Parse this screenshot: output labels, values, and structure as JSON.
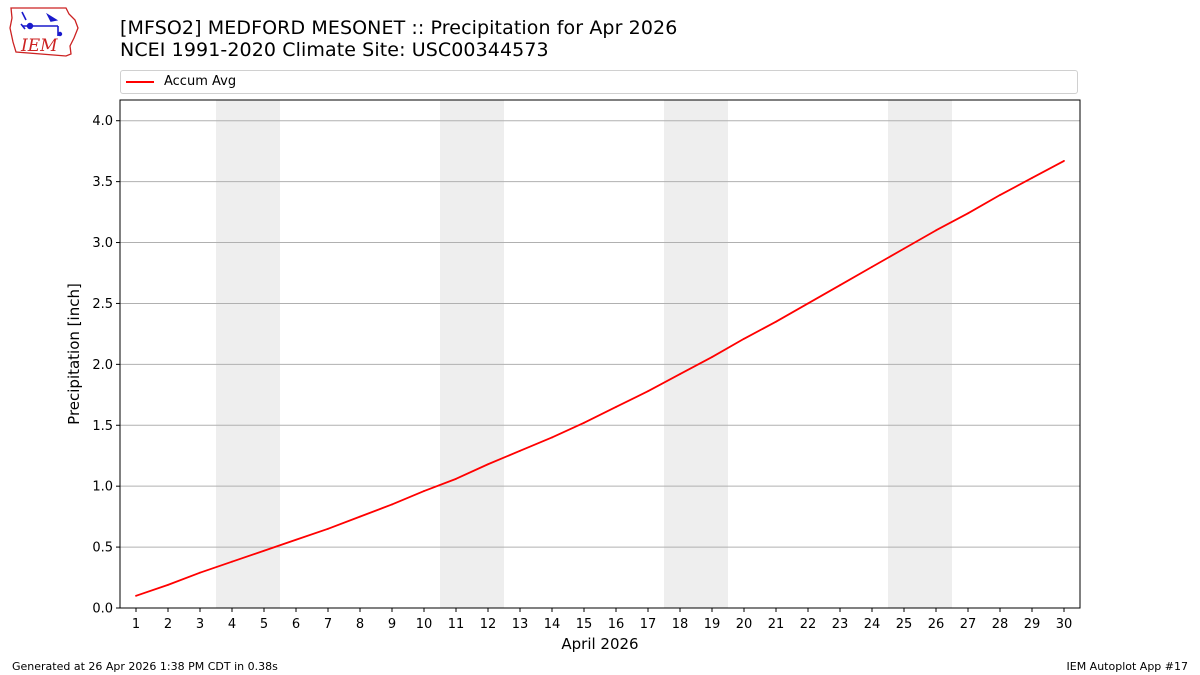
{
  "header": {
    "logo_text": "IEM",
    "title_line1": "[MFSO2] MEDFORD MESONET :: Precipitation for Apr 2026",
    "title_line2": "NCEI 1991-2020 Climate Site: USC00344573"
  },
  "legend": {
    "entries": [
      "Accum Avg"
    ]
  },
  "footer": {
    "generated": "Generated at 26 Apr 2026 1:38 PM CDT in 0.38s",
    "app": "IEM Autoplot App #17"
  },
  "colors": {
    "line": "#ff0000",
    "weekend_band": "#eeeeee",
    "grid": "#b0b0b0",
    "logo": "#cc2222",
    "logo_icon": "#1a1acc"
  },
  "chart_data": {
    "type": "line",
    "title": "[MFSO2] MEDFORD MESONET :: Precipitation for Apr 2026",
    "subtitle": "NCEI 1991-2020 Climate Site: USC00344573",
    "xlabel": "April 2026",
    "ylabel": "Precipitation [inch]",
    "x": [
      1,
      2,
      3,
      4,
      5,
      6,
      7,
      8,
      9,
      10,
      11,
      12,
      13,
      14,
      15,
      16,
      17,
      18,
      19,
      20,
      21,
      22,
      23,
      24,
      25,
      26,
      27,
      28,
      29,
      30
    ],
    "series": [
      {
        "name": "Accum Avg",
        "values": [
          0.1,
          0.19,
          0.29,
          0.38,
          0.47,
          0.56,
          0.65,
          0.75,
          0.85,
          0.96,
          1.06,
          1.18,
          1.29,
          1.4,
          1.52,
          1.65,
          1.78,
          1.92,
          2.06,
          2.21,
          2.35,
          2.5,
          2.65,
          2.8,
          2.95,
          3.1,
          3.24,
          3.39,
          3.53,
          3.67
        ]
      }
    ],
    "shaded_days": [
      4,
      5,
      11,
      12,
      18,
      19,
      25,
      26
    ],
    "xlim": [
      0.5,
      30.5
    ],
    "ylim": [
      0,
      4.17
    ],
    "yticks": [
      "0.0",
      "0.5",
      "1.0",
      "1.5",
      "2.0",
      "2.5",
      "3.0",
      "3.5",
      "4.0"
    ],
    "xticks": [
      "1",
      "2",
      "3",
      "4",
      "5",
      "6",
      "7",
      "8",
      "9",
      "10",
      "11",
      "12",
      "13",
      "14",
      "15",
      "16",
      "17",
      "18",
      "19",
      "20",
      "21",
      "22",
      "23",
      "24",
      "25",
      "26",
      "27",
      "28",
      "29",
      "30"
    ],
    "grid": "y-major",
    "legend_position": "top"
  }
}
